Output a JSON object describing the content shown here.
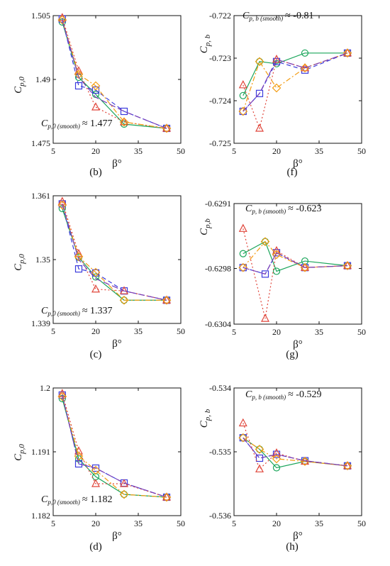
{
  "legend_colors": {
    "square": "#3b3bdc",
    "triangle": "#e0453a",
    "diamond": "#f39c12",
    "circle": "#1aa55a"
  },
  "series_styles": {
    "square": {
      "color": "#3b3bdc",
      "marker": "square",
      "dash": "dashed"
    },
    "triangle": {
      "color": "#e0453a",
      "marker": "triangle",
      "dash": "dotted"
    },
    "diamond": {
      "color": "#f39c12",
      "marker": "diamond",
      "dash": "dash-dot"
    },
    "dashline": {
      "color": "#7a3fb8",
      "marker": "none",
      "dash": "long-dash"
    },
    "circle": {
      "color": "#1aa55a",
      "marker": "circle",
      "dash": "solid"
    }
  },
  "chart_data": [
    {
      "id": "b",
      "type": "line",
      "caption": "(b)",
      "ylabel_main": "C",
      "ylabel_sub": "p,0",
      "xlabel": "β°",
      "xlim": [
        5,
        50
      ],
      "ylim": [
        1.475,
        1.505
      ],
      "xticks": [
        "5",
        "20",
        "35",
        "50"
      ],
      "yticks": [
        "1.475",
        "1.49",
        "1.505"
      ],
      "annotation_main": "C",
      "annotation_sub": "p,0 (smooth)",
      "annotation_value": "≈ 1.477",
      "series": [
        {
          "style": "circle",
          "x": [
            8.2,
            14,
            20,
            30,
            45
          ],
          "y": [
            1.5035,
            1.4905,
            1.4865,
            1.4795,
            1.4785
          ]
        },
        {
          "style": "square",
          "x": [
            8.2,
            14,
            20,
            30,
            45
          ],
          "y": [
            1.5042,
            1.4885,
            1.4875,
            1.4825,
            1.4785
          ]
        },
        {
          "style": "triangle",
          "x": [
            8.2,
            14,
            20,
            30,
            45
          ],
          "y": [
            1.5045,
            1.492,
            1.4835,
            1.48,
            1.4785
          ]
        },
        {
          "style": "diamond",
          "x": [
            8.2,
            14,
            20,
            30,
            45
          ],
          "y": [
            1.504,
            1.4912,
            1.4885,
            1.48,
            1.4785
          ]
        },
        {
          "style": "dashline",
          "x": [
            8.2,
            14,
            20,
            30,
            45
          ],
          "y": [
            1.504,
            1.4905,
            1.4858,
            1.4825,
            1.4785
          ]
        }
      ]
    },
    {
      "id": "f",
      "type": "line",
      "caption": "(f)",
      "ylabel_main": "C",
      "ylabel_sub": "p, b",
      "xlabel": "β°",
      "xlim": [
        5,
        50
      ],
      "ylim": [
        -0.725,
        -0.722
      ],
      "xticks": [
        "5",
        "20",
        "35",
        "50"
      ],
      "yticks": [
        "-0.725",
        "-0.724",
        "-0.723",
        "-0.722"
      ],
      "annotation_main": "C",
      "annotation_sub": "p, b (smooth)",
      "annotation_value": "≈ -0.81",
      "series": [
        {
          "style": "circle",
          "x": [
            8.2,
            14,
            20,
            30,
            45
          ],
          "y": [
            -0.72388,
            -0.72308,
            -0.72313,
            -0.72288,
            -0.72288
          ]
        },
        {
          "style": "square",
          "x": [
            8.2,
            14,
            20,
            30,
            45
          ],
          "y": [
            -0.72425,
            -0.72383,
            -0.72308,
            -0.72328,
            -0.72288
          ]
        },
        {
          "style": "triangle",
          "x": [
            8.2,
            14,
            20,
            30,
            45
          ],
          "y": [
            -0.72363,
            -0.72465,
            -0.72303,
            -0.72323,
            -0.72288
          ]
        },
        {
          "style": "diamond",
          "x": [
            8.2,
            14,
            20,
            30,
            45
          ],
          "y": [
            -0.72425,
            -0.72308,
            -0.7237,
            -0.72323,
            -0.72288
          ]
        },
        {
          "style": "dashline",
          "x": [
            8.2,
            14,
            20,
            30,
            45
          ],
          "y": [
            -0.72425,
            -0.72383,
            -0.72303,
            -0.72323,
            -0.72288
          ]
        }
      ]
    },
    {
      "id": "c",
      "type": "line",
      "caption": "(c)",
      "ylabel_main": "C",
      "ylabel_sub": "p,0",
      "xlabel": "β°",
      "xlim": [
        5,
        50
      ],
      "ylim": [
        1.339,
        1.361
      ],
      "xticks": [
        "5",
        "20",
        "35",
        "50"
      ],
      "yticks": [
        "1.339",
        "1.35",
        "1.361"
      ],
      "annotation_main": "C",
      "annotation_sub": "p,0 (smooth)",
      "annotation_value": "≈ 1.337",
      "series": [
        {
          "style": "circle",
          "x": [
            8.2,
            14,
            20,
            30,
            45
          ],
          "y": [
            1.3588,
            1.3504,
            1.347,
            1.343,
            1.343
          ]
        },
        {
          "style": "square",
          "x": [
            8.2,
            14,
            20,
            30,
            45
          ],
          "y": [
            1.3596,
            1.3484,
            1.3477,
            1.3446,
            1.343
          ]
        },
        {
          "style": "triangle",
          "x": [
            8.2,
            14,
            20,
            30,
            45
          ],
          "y": [
            1.36,
            1.351,
            1.3449,
            1.3446,
            1.343
          ]
        },
        {
          "style": "diamond",
          "x": [
            8.2,
            14,
            20,
            30,
            45
          ],
          "y": [
            1.3594,
            1.3505,
            1.3478,
            1.343,
            1.343
          ]
        },
        {
          "style": "dashline",
          "x": [
            8.2,
            14,
            20,
            30,
            45
          ],
          "y": [
            1.3596,
            1.35,
            1.3467,
            1.3446,
            1.343
          ]
        }
      ]
    },
    {
      "id": "g",
      "type": "line",
      "caption": "(g)",
      "ylabel_main": "C",
      "ylabel_sub": "p,b",
      "xlabel": "β°",
      "xlim": [
        5,
        50
      ],
      "ylim": [
        -0.6304,
        -0.6291
      ],
      "xticks": [
        "5",
        "20",
        "35",
        "50"
      ],
      "yticks": [
        "-0.6304",
        "-0.6298",
        "-0.6291"
      ],
      "annotation_main": "C",
      "annotation_sub": "p, b (smooth)",
      "annotation_value": "≈ -0.623",
      "series": [
        {
          "style": "circle",
          "x": [
            8.2,
            16,
            20,
            30,
            45
          ],
          "y": [
            -0.62964,
            -0.62951,
            -0.62983,
            -0.62972,
            -0.62977
          ]
        },
        {
          "style": "square",
          "x": [
            8.2,
            16,
            20,
            30,
            45
          ],
          "y": [
            -0.62979,
            -0.62986,
            -0.62963,
            -0.62979,
            -0.62977
          ]
        },
        {
          "style": "triangle",
          "x": [
            8.2,
            16,
            20,
            30,
            45
          ],
          "y": [
            -0.62937,
            -0.63034,
            -0.62961,
            -0.62979,
            -0.62977
          ]
        },
        {
          "style": "diamond",
          "x": [
            8.2,
            16,
            20,
            30,
            45
          ],
          "y": [
            -0.62979,
            -0.62951,
            -0.62965,
            -0.62979,
            -0.62977
          ]
        },
        {
          "style": "dashline",
          "x": [
            8.2,
            16,
            20,
            30,
            45
          ],
          "y": [
            -0.62979,
            -0.62986,
            -0.62963,
            -0.62979,
            -0.62977
          ]
        }
      ]
    },
    {
      "id": "d",
      "type": "line",
      "caption": "(d)",
      "ylabel_main": "C",
      "ylabel_sub": "p,0",
      "xlabel": "β°",
      "xlim": [
        5,
        50
      ],
      "ylim": [
        1.182,
        1.2
      ],
      "xticks": [
        "5",
        "20",
        "35",
        "50"
      ],
      "yticks": [
        "1.182",
        "1.191",
        "1.2"
      ],
      "annotation_main": "C",
      "annotation_sub": "p,0 (smooth)",
      "annotation_value": "≈ 1.182",
      "series": [
        {
          "style": "circle",
          "x": [
            8.2,
            14,
            20,
            30,
            45
          ],
          "y": [
            1.1985,
            1.19,
            1.1875,
            1.185,
            1.1846
          ]
        },
        {
          "style": "square",
          "x": [
            8.2,
            14,
            20,
            30,
            45
          ],
          "y": [
            1.199,
            1.1893,
            1.1887,
            1.1866,
            1.1846
          ]
        },
        {
          "style": "triangle",
          "x": [
            8.2,
            14,
            20,
            30,
            45
          ],
          "y": [
            1.1992,
            1.1911,
            1.1865,
            1.1865,
            1.1846
          ]
        },
        {
          "style": "diamond",
          "x": [
            8.2,
            14,
            20,
            30,
            45
          ],
          "y": [
            1.1988,
            1.1904,
            1.1884,
            1.185,
            1.1846
          ]
        },
        {
          "style": "dashline",
          "x": [
            8.2,
            14,
            20,
            30,
            45
          ],
          "y": [
            1.199,
            1.1893,
            1.1887,
            1.1866,
            1.1846
          ]
        }
      ]
    },
    {
      "id": "h",
      "type": "line",
      "caption": "(h)",
      "ylabel_main": "C",
      "ylabel_sub": "p, b",
      "xlabel": "β°",
      "xlim": [
        5,
        50
      ],
      "ylim": [
        -0.536,
        -0.534
      ],
      "xticks": [
        "5",
        "20",
        "35",
        "50"
      ],
      "yticks": [
        "-0.536",
        "-0.535",
        "-0.534"
      ],
      "annotation_main": "C",
      "annotation_sub": "p, b (smooth)",
      "annotation_value": "≈ -0.529",
      "series": [
        {
          "style": "circle",
          "x": [
            8.2,
            14,
            20,
            30,
            45
          ],
          "y": [
            -0.53478,
            -0.53496,
            -0.53525,
            -0.53515,
            -0.53522
          ]
        },
        {
          "style": "square",
          "x": [
            8.2,
            14,
            20,
            30,
            45
          ],
          "y": [
            -0.53478,
            -0.5351,
            -0.53504,
            -0.53514,
            -0.53522
          ]
        },
        {
          "style": "triangle",
          "x": [
            8.2,
            14,
            20,
            30,
            45
          ],
          "y": [
            -0.53455,
            -0.53527,
            -0.53502,
            -0.53515,
            -0.53522
          ]
        },
        {
          "style": "diamond",
          "x": [
            8.2,
            14,
            20,
            30,
            45
          ],
          "y": [
            -0.53478,
            -0.53496,
            -0.53511,
            -0.53515,
            -0.53522
          ]
        },
        {
          "style": "dashline",
          "x": [
            8.2,
            14,
            20,
            30,
            45
          ],
          "y": [
            -0.53478,
            -0.5351,
            -0.53504,
            -0.53514,
            -0.53522
          ]
        }
      ]
    }
  ]
}
